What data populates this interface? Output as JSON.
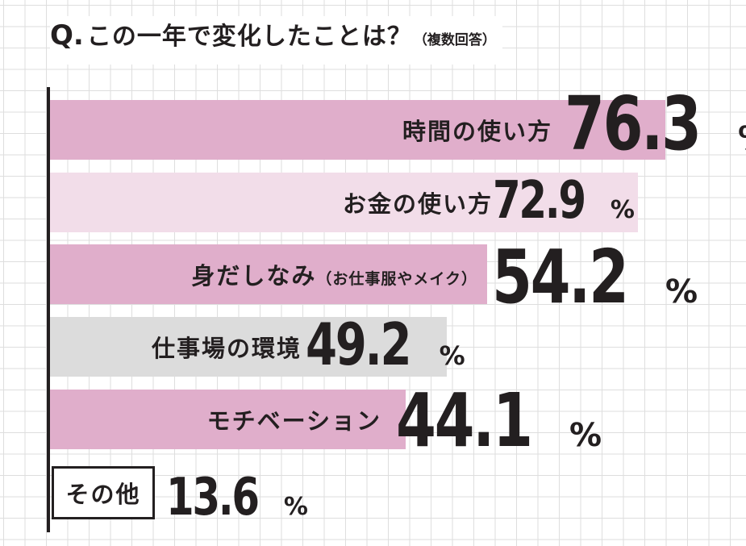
{
  "title": {
    "q": "Q.",
    "main": "この一年で変化したことは？",
    "note": "（複数回答）"
  },
  "pct_symbol": "%",
  "chart_data": {
    "type": "bar",
    "orientation": "horizontal",
    "title": "Q.この一年で変化したことは？（複数回答）",
    "unit": "%",
    "categories": [
      "時間の使い方",
      "お金の使い方",
      "身だしなみ（お仕事服やメイク）",
      "仕事場の環境",
      "モチベーション",
      "その他"
    ],
    "values": [
      76.3,
      72.9,
      54.2,
      49.2,
      44.1,
      13.6
    ],
    "xlim": [
      0,
      100
    ],
    "grid": true,
    "legend": "none",
    "colors": [
      "#e0aecb",
      "#f2dde9",
      "#e0aecb",
      "#dcdcdc",
      "#e0aecb",
      "#ffffff"
    ]
  },
  "bars": [
    {
      "label": "時間の使い方",
      "sub": "",
      "value_text": "76.3",
      "value": 76.3,
      "color": "#e0aecb"
    },
    {
      "label": "お金の使い方",
      "sub": "",
      "value_text": "72.9",
      "value": 72.9,
      "color": "#f2dde9"
    },
    {
      "label": "身だしなみ",
      "sub": "（お仕事服やメイク）",
      "value_text": "54.2",
      "value": 54.2,
      "color": "#e0aecb"
    },
    {
      "label": "仕事場の環境",
      "sub": "",
      "value_text": "49.2",
      "value": 49.2,
      "color": "#dcdcdc"
    },
    {
      "label": "モチベーション",
      "sub": "",
      "value_text": "44.1",
      "value": 44.1,
      "color": "#e0aecb"
    }
  ],
  "other": {
    "label": "その他",
    "value_text": "13.6",
    "value": 13.6
  }
}
